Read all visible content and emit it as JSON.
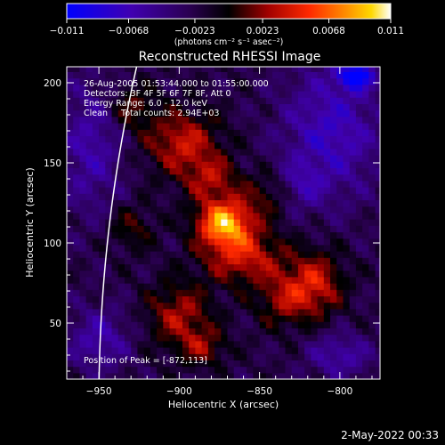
{
  "chart_data": {
    "type": "heatmap",
    "title": "Reconstructed RHESSI Image",
    "xlabel": "Heliocentric X (arcsec)",
    "ylabel": "Heliocentric Y (arcsec)",
    "xlim": [
      -970,
      -775
    ],
    "ylim": [
      15,
      210
    ],
    "x_ticks": [
      -950,
      -900,
      -850,
      -800
    ],
    "x_tick_labels": [
      "−950",
      "−900",
      "−850",
      "−800"
    ],
    "y_ticks": [
      50,
      100,
      150,
      200
    ],
    "y_tick_labels": [
      "50",
      "100",
      "150",
      "200"
    ],
    "colorbar": {
      "min": -0.011,
      "max": 0.011,
      "ticks": [
        -0.011,
        -0.0068,
        -0.0023,
        0.0023,
        0.0068,
        0.011
      ],
      "tick_labels": [
        "−0.011",
        "−0.0068",
        "−0.0023",
        "0.0023",
        "0.0068",
        "0.011"
      ],
      "label": "(photons cm⁻² s⁻¹ asec⁻²)",
      "colormap": "rainbow-3"
    },
    "annotations": [
      "26-Aug-2005 01:53:44.000 to 01:55:00.000",
      "Detectors: 3F 4F 5F 6F 7F 8F, Att 0",
      "Energy Range: 6.0 - 12.0 keV",
      "Clean     Total counts: 2.94E+03",
      "Position of Peak = [-872,113]"
    ],
    "sources": [
      {
        "x": -872,
        "y": 113,
        "sx": 12,
        "sy": 10,
        "amp": 0.0105
      },
      {
        "x": -898,
        "y": 163,
        "sx": 16,
        "sy": 14,
        "amp": 0.0058
      },
      {
        "x": -880,
        "y": 140,
        "sx": 12,
        "sy": 10,
        "amp": 0.0045
      },
      {
        "x": -860,
        "y": 92,
        "sx": 18,
        "sy": 12,
        "amp": 0.006
      },
      {
        "x": -815,
        "y": 75,
        "sx": 12,
        "sy": 14,
        "amp": 0.0058
      },
      {
        "x": -835,
        "y": 65,
        "sx": 12,
        "sy": 12,
        "amp": 0.0042
      },
      {
        "x": -900,
        "y": 55,
        "sx": 14,
        "sy": 14,
        "amp": 0.005
      },
      {
        "x": -885,
        "y": 35,
        "sx": 10,
        "sy": 8,
        "amp": 0.0038
      },
      {
        "x": -930,
        "y": 110,
        "sx": 10,
        "sy": 10,
        "amp": 0.003
      },
      {
        "x": -930,
        "y": 185,
        "sx": 10,
        "sy": 10,
        "amp": 0.0035
      },
      {
        "x": -845,
        "y": 130,
        "sx": 12,
        "sy": 10,
        "amp": 0.0032
      }
    ],
    "negative_regions": [
      {
        "x": -805,
        "y": 170,
        "sx": 22,
        "sy": 30,
        "amp": -0.005
      },
      {
        "x": -790,
        "y": 205,
        "sx": 8,
        "sy": 6,
        "amp": -0.008
      },
      {
        "x": -955,
        "y": 160,
        "sx": 14,
        "sy": 30,
        "amp": -0.004
      },
      {
        "x": -950,
        "y": 40,
        "sx": 14,
        "sy": 14,
        "amp": -0.004
      },
      {
        "x": -800,
        "y": 30,
        "sx": 14,
        "sy": 10,
        "amp": -0.004
      },
      {
        "x": -825,
        "y": 135,
        "sx": 10,
        "sy": 10,
        "amp": -0.003
      }
    ],
    "limb": {
      "radius_arcsec": 950,
      "color": "#ffffff"
    },
    "grid": false
  },
  "footer": {
    "timestamp": "2-May-2022 00:33"
  },
  "colors": {
    "background": "#000000",
    "text": "#ffffff"
  }
}
